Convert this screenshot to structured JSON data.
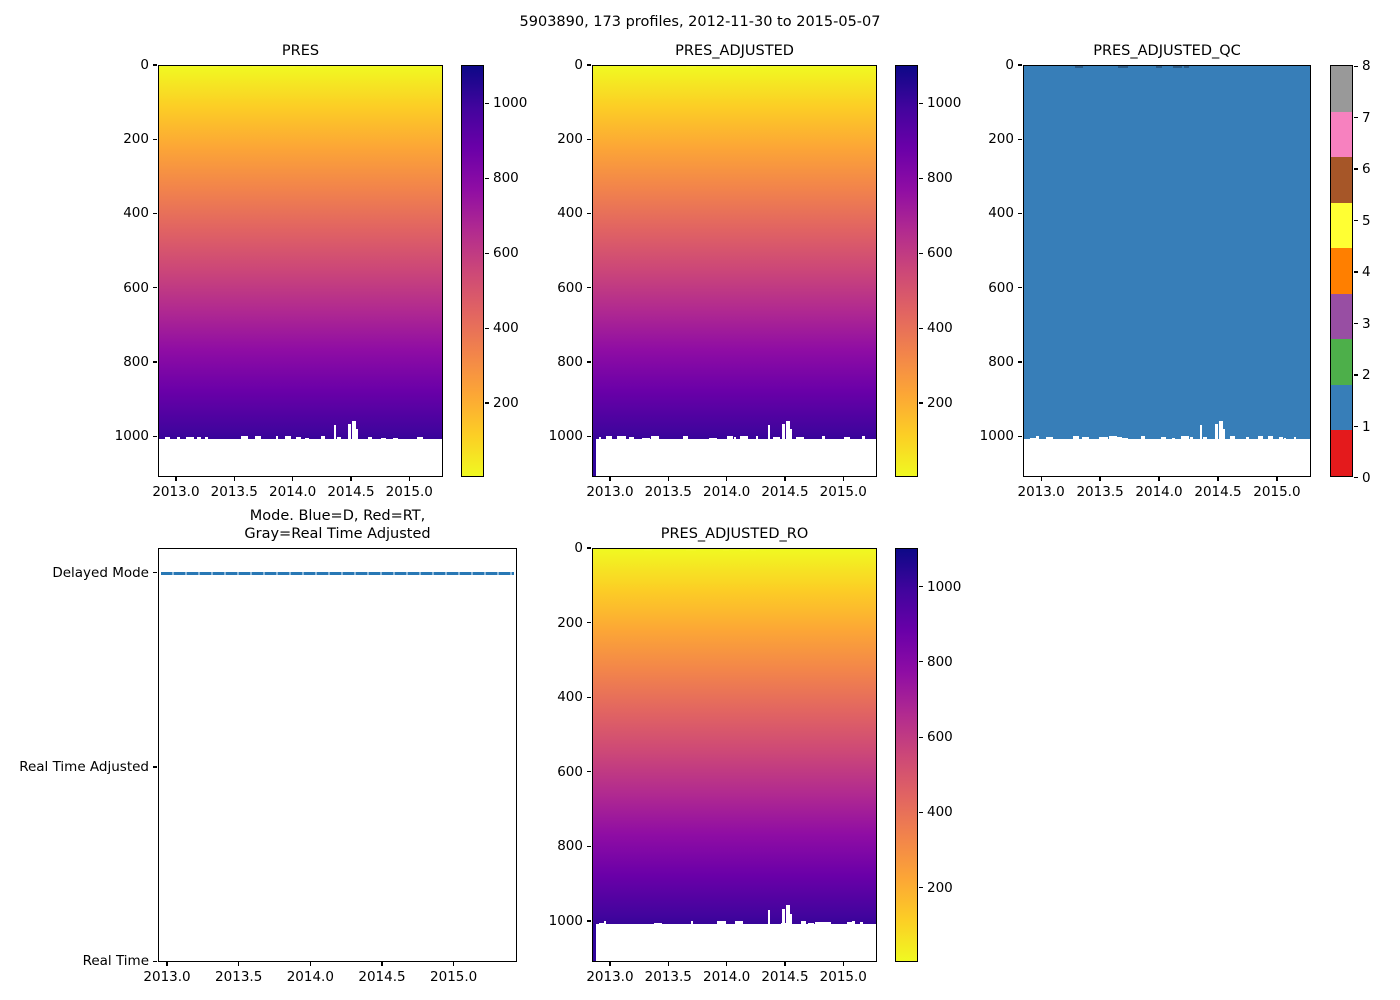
{
  "figure": {
    "suptitle": "5903890, 173 profiles, 2012-11-30 to 2015-05-07",
    "platform_id": "5903890",
    "n_profiles": 173,
    "date_start": "2012-11-30",
    "date_end": "2015-05-07"
  },
  "colors": {
    "plasma": [
      "#0d0887",
      "#41049d",
      "#6a00a8",
      "#8f0da4",
      "#b12a90",
      "#cc4778",
      "#e16462",
      "#f2844b",
      "#fca636",
      "#fcce25",
      "#f0f921"
    ],
    "qc_segments": [
      "#e41a1c",
      "#377eb8",
      "#4daf4a",
      "#984ea3",
      "#ff7f00",
      "#ffff33",
      "#a65628",
      "#f781bf",
      "#999999"
    ],
    "qc_fill": "#377eb8",
    "qc_edge_mark": "#2a5a86",
    "pressure_edge_mark": "#f2f727",
    "mode_line": "#2878b5",
    "mode_line_gap": "#8db9dc",
    "left_strip": "#30049c",
    "frame": "#000000"
  },
  "chart_data": [
    {
      "type": "heatmap",
      "title": "PRES",
      "x_tick_labels": [
        "2013.0",
        "2013.5",
        "2014.0",
        "2014.5",
        "2015.0"
      ],
      "x_ticks": [
        2013.0,
        2013.5,
        2014.0,
        2014.5,
        2015.0
      ],
      "xlim": [
        2012.846,
        2015.289
      ],
      "y_tick_labels": [
        "0",
        "200",
        "400",
        "600",
        "800",
        "1000"
      ],
      "y_ticks": [
        0,
        200,
        400,
        600,
        800,
        1000
      ],
      "ylim": [
        0,
        1110
      ],
      "y_axis_inverted": true,
      "colormap": "plasma reversed (yellow=low, dark indigo=high)",
      "colorbar_ticks": [
        1000,
        800,
        600,
        400,
        200
      ],
      "colorbar_range": [
        0,
        1100
      ],
      "data_description": "Pressure (dbar) increases nearly linearly with vertical level: ~0 dbar at level 0 (yellow) to ~1010 dbar at level ~1000 (dark indigo). Levels below ~1000 are white (no data), with a ragged data edge and small white gaps; white spikes reach up to ~level 965 near 2014.4-2014.6. 173 profile columns from 2012-11-30 to 2015-05-07."
    },
    {
      "type": "heatmap",
      "title": "PRES_ADJUSTED",
      "x_tick_labels": [
        "2013.0",
        "2013.5",
        "2014.0",
        "2014.5",
        "2015.0"
      ],
      "x_ticks": [
        2013.0,
        2013.5,
        2014.0,
        2014.5,
        2015.0
      ],
      "xlim": [
        2012.846,
        2015.289
      ],
      "y_tick_labels": [
        "0",
        "200",
        "400",
        "600",
        "800",
        "1000"
      ],
      "y_ticks": [
        0,
        200,
        400,
        600,
        800,
        1000
      ],
      "ylim": [
        0,
        1110
      ],
      "y_axis_inverted": true,
      "colormap": "plasma reversed (yellow=low, dark indigo=high)",
      "colorbar_ticks": [
        1000,
        800,
        600,
        400,
        200
      ],
      "colorbar_range": [
        0,
        1100
      ],
      "data_description": "Adjusted pressure, visually identical to PRES: ~0 dbar at surface to ~1010 dbar at level ~1000; white (no data) below; first profile column extends deeper (thin dark strip at left edge)."
    },
    {
      "type": "heatmap",
      "title": "PRES_ADJUSTED_QC",
      "x_tick_labels": [
        "2013.0",
        "2013.5",
        "2014.0",
        "2014.5",
        "2015.0"
      ],
      "x_ticks": [
        2013.0,
        2013.5,
        2014.0,
        2014.5,
        2015.0
      ],
      "xlim": [
        2012.846,
        2015.289
      ],
      "y_tick_labels": [
        "0",
        "200",
        "400",
        "600",
        "800",
        "1000"
      ],
      "y_ticks": [
        0,
        200,
        400,
        600,
        800,
        1000
      ],
      "ylim": [
        0,
        1110
      ],
      "y_axis_inverted": true,
      "colormap": "discrete 9-color (ColorBrewer Set1): 0=red,1=blue,2=green,3=purple,4=orange,5=yellow,6=brown,7=pink,8=gray",
      "colorbar_ticks": [
        8,
        7,
        6,
        5,
        4,
        3,
        2,
        1,
        0
      ],
      "colorbar_range": [
        0,
        8
      ],
      "data_description": "QC flag = 1 (good data, blue) for all measured levels 0 to ~1000 across all 173 profiles; white (no data) below level ~1000 with the same ragged edge and spikes as PRES."
    },
    {
      "type": "line",
      "title": "Mode. Blue=D, Red=RT, Gray=Real Time Adjusted",
      "title_lines": [
        "Mode. Blue=D, Red=RT,",
        "Gray=Real Time Adjusted"
      ],
      "x_tick_labels": [
        "2013.0",
        "2013.5",
        "2014.0",
        "2014.5",
        "2015.0"
      ],
      "x_ticks": [
        2013.0,
        2013.5,
        2014.0,
        2014.5,
        2015.0
      ],
      "xlim": [
        2012.937,
        2015.442
      ],
      "y_categories": [
        "Real Time",
        "Real Time Adjusted",
        "Delayed Mode"
      ],
      "series": [
        {
          "name": "processing mode",
          "value": "Delayed Mode",
          "color_key": "blue",
          "description": "All 173 profiles are Delayed Mode: a continuous blue marker line at the 'Delayed Mode' level spanning the full time range; no points at 'Real Time' or 'Real Time Adjusted'."
        }
      ]
    },
    {
      "type": "heatmap",
      "title": "PRES_ADJUSTED_RO",
      "x_tick_labels": [
        "2013.0",
        "2013.5",
        "2014.0",
        "2014.5",
        "2015.0"
      ],
      "x_ticks": [
        2013.0,
        2013.5,
        2014.0,
        2014.5,
        2015.0
      ],
      "xlim": [
        2012.846,
        2015.289
      ],
      "y_tick_labels": [
        "0",
        "200",
        "400",
        "600",
        "800",
        "1000"
      ],
      "y_ticks": [
        0,
        200,
        400,
        600,
        800,
        1000
      ],
      "ylim": [
        0,
        1110
      ],
      "y_axis_inverted": true,
      "colormap": "plasma reversed (yellow=low, dark indigo=high)",
      "colorbar_ticks": [
        1000,
        800,
        600,
        400,
        200
      ],
      "colorbar_range": [
        0,
        1100
      ],
      "data_description": "Real-time-ordered adjusted pressure, visually identical to PRES_ADJUSTED: ~0 dbar at surface to ~1010 dbar at level ~1000; white (no data) below; thin dark strip at left edge."
    }
  ]
}
